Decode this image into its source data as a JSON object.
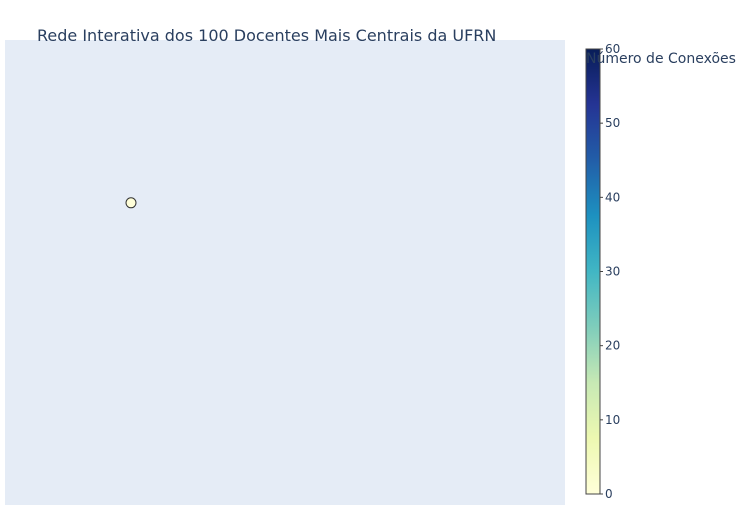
{
  "chart_data": {
    "type": "scatter",
    "title": "Rede Interativa dos 100 Docentes Mais Centrais da UFRN",
    "xlabel": "",
    "ylabel": "",
    "grid": false,
    "axes_visible": false,
    "xlim": [
      -1,
      1
    ],
    "ylim": [
      -1,
      1
    ],
    "series": [
      {
        "x": [
          -0.55
        ],
        "y": [
          0.3
        ],
        "color_values": [
          0
        ]
      }
    ],
    "colorbar": {
      "title": "Número de Conexões",
      "colorscale": "YlGnBu",
      "range": [
        0,
        60
      ],
      "ticks": [
        0,
        10,
        20,
        30,
        40,
        50,
        60
      ],
      "placement": "right"
    },
    "colors": {
      "plot_background": "#e5ecf6",
      "paper_background": "#ffffff",
      "text": "#2a3f5f",
      "marker_outline": "#333333",
      "colorscale_stops": [
        "#ffffd9",
        "#edf8b1",
        "#c7e9b4",
        "#7fcdbb",
        "#41b6c4",
        "#1d91c0",
        "#225ea8",
        "#253494",
        "#081d58"
      ]
    }
  }
}
